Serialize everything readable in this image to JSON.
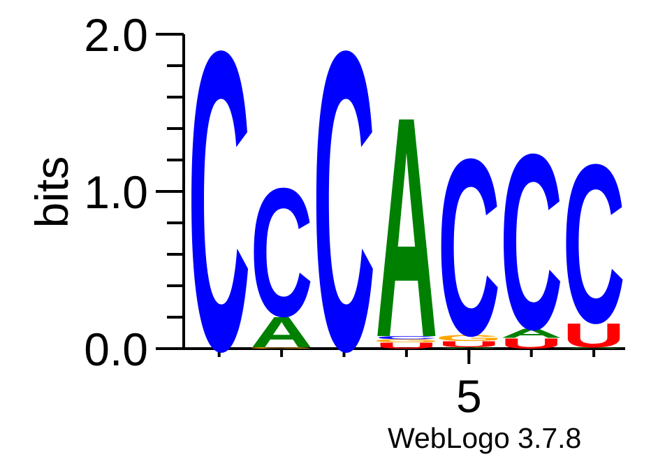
{
  "chart_data": {
    "type": "sequence-logo",
    "ylabel": "bits",
    "ylim": [
      0,
      2
    ],
    "y_ticks": [
      "0.0",
      "1.0",
      "2.0"
    ],
    "x_tick_labels": [
      {
        "position": 5,
        "label": "5"
      }
    ],
    "positions": [
      {
        "position": 1,
        "letters": [
          {
            "letter": "C",
            "bits": 1.98
          }
        ]
      },
      {
        "position": 2,
        "letters": [
          {
            "letter": "G",
            "bits": 0.01
          },
          {
            "letter": "A",
            "bits": 0.2
          },
          {
            "letter": "C",
            "bits": 0.85
          }
        ]
      },
      {
        "position": 3,
        "letters": [
          {
            "letter": "C",
            "bits": 1.98
          }
        ]
      },
      {
        "position": 4,
        "letters": [
          {
            "letter": "U",
            "bits": 0.04
          },
          {
            "letter": "G",
            "bits": 0.02
          },
          {
            "letter": "C",
            "bits": 0.02
          },
          {
            "letter": "A",
            "bits": 1.46
          }
        ]
      },
      {
        "position": 5,
        "letters": [
          {
            "letter": "A",
            "bits": 0.01
          },
          {
            "letter": "U",
            "bits": 0.04
          },
          {
            "letter": "G",
            "bits": 0.04
          },
          {
            "letter": "C",
            "bits": 1.17
          }
        ]
      },
      {
        "position": 6,
        "letters": [
          {
            "letter": "U",
            "bits": 0.07
          },
          {
            "letter": "A",
            "bits": 0.06
          },
          {
            "letter": "C",
            "bits": 1.16
          }
        ]
      },
      {
        "position": 7,
        "letters": [
          {
            "letter": "A",
            "bits": 0.01
          },
          {
            "letter": "U",
            "bits": 0.16
          },
          {
            "letter": "C",
            "bits": 1.05
          }
        ]
      }
    ],
    "colors": {
      "C": "#0000ff",
      "A": "#008000",
      "G": "#ffa500",
      "U": "#ff0000"
    }
  },
  "credit": "WebLogo 3.7.8"
}
